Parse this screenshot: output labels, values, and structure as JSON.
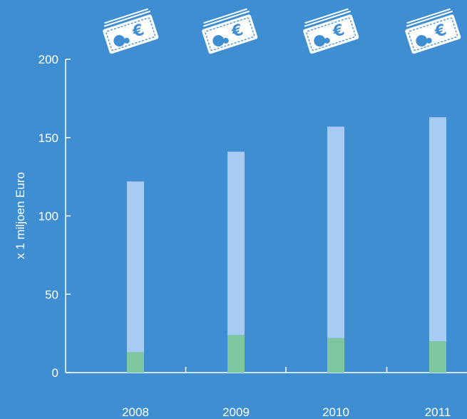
{
  "chart_data": {
    "type": "bar",
    "stacked": true,
    "categories": [
      "2008",
      "2009",
      "2010",
      "2011"
    ],
    "series": [
      {
        "values": [
          13,
          24,
          22,
          20
        ],
        "color": "#7ec79e"
      },
      {
        "values": [
          109,
          117,
          135,
          143
        ],
        "color": "#a7cbf3"
      }
    ],
    "ylabel": "x 1 miljoen Euro",
    "yticks": [
      0,
      50,
      100,
      150,
      200
    ],
    "ylim": [
      0,
      200
    ],
    "icon": "euro-banknote-icon",
    "colors": {
      "background": "#3f8ed2",
      "axis": "#ffffff",
      "text": "#ffffff"
    }
  }
}
